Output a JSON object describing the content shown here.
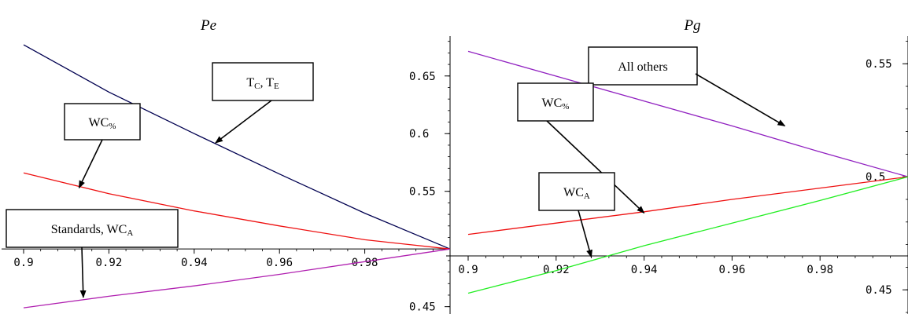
{
  "chart_data": [
    {
      "type": "line",
      "title": "Pe",
      "xlabel": "",
      "ylabel": "",
      "xlim": [
        0.9,
        1.0
      ],
      "ylim": [
        0.445,
        0.69
      ],
      "x_axis_at_y": 0.5,
      "y_axis_side": "right",
      "grid": false,
      "x_ticks": [
        "0.9",
        "0.92",
        "0.94",
        "0.96",
        "0.98"
      ],
      "y_ticks": [
        "0.65",
        "0.6",
        "0.55",
        "0.45"
      ],
      "series": [
        {
          "color": "#000050",
          "x": [
            0.9,
            0.92,
            0.94,
            0.96,
            0.98,
            1.0
          ],
          "y": [
            0.677,
            0.636,
            0.6,
            0.565,
            0.531,
            0.5
          ]
        },
        {
          "color": "#ee1111",
          "x": [
            0.9,
            0.92,
            0.94,
            0.96,
            0.98,
            1.0
          ],
          "y": [
            0.566,
            0.548,
            0.533,
            0.52,
            0.508,
            0.5
          ]
        },
        {
          "color": "#b020b0",
          "x": [
            0.9,
            0.92,
            0.94,
            0.96,
            0.98,
            1.0
          ],
          "y": [
            0.449,
            0.459,
            0.468,
            0.478,
            0.489,
            0.5
          ]
        }
      ],
      "annotations": [
        {
          "id": "tc-te",
          "text": "T",
          "sub1": "C",
          "mid": ", T",
          "sub2": "E",
          "point": [
            0.945,
            0.592
          ]
        },
        {
          "id": "wc-pct",
          "text": "WC",
          "sub1": "%",
          "point": [
            0.913,
            0.553
          ]
        },
        {
          "id": "standards",
          "text": "Standards, WC",
          "sub1": "A",
          "point": [
            0.914,
            0.458
          ]
        }
      ]
    },
    {
      "type": "line",
      "title": "Pg",
      "xlabel": "",
      "ylabel": "",
      "xlim": [
        0.9,
        1.0
      ],
      "ylim": [
        0.44,
        0.565
      ],
      "x_axis_at_y": 0.465,
      "y_axis_side": "right",
      "grid": false,
      "x_ticks": [
        "0.9",
        "0.92",
        "0.94",
        "0.96",
        "0.98"
      ],
      "y_ticks": [
        "0.55",
        "0.5",
        "0.45"
      ],
      "series": [
        {
          "color": "#9020c0",
          "x": [
            0.9,
            0.92,
            0.94,
            0.96,
            0.98,
            1.0
          ],
          "y": [
            0.5555,
            0.5445,
            0.5335,
            0.5225,
            0.511,
            0.5
          ]
        },
        {
          "color": "#ee1111",
          "x": [
            0.9,
            0.92,
            0.94,
            0.96,
            0.98,
            1.0
          ],
          "y": [
            0.4745,
            0.4795,
            0.4845,
            0.49,
            0.495,
            0.5
          ]
        },
        {
          "color": "#22ee22",
          "x": [
            0.9,
            0.92,
            0.94,
            0.96,
            0.98,
            1.0
          ],
          "y": [
            0.4485,
            0.4585,
            0.4695,
            0.4795,
            0.4895,
            0.5
          ]
        }
      ],
      "annotations": [
        {
          "id": "all-others",
          "text": "All others",
          "point": [
            0.972,
            0.5225
          ]
        },
        {
          "id": "wc-pct",
          "text": "WC",
          "sub1": "%",
          "point": [
            0.94,
            0.484
          ]
        },
        {
          "id": "wc-a",
          "text": "WC",
          "sub1": "A",
          "point": [
            0.928,
            0.4645
          ]
        }
      ]
    }
  ]
}
